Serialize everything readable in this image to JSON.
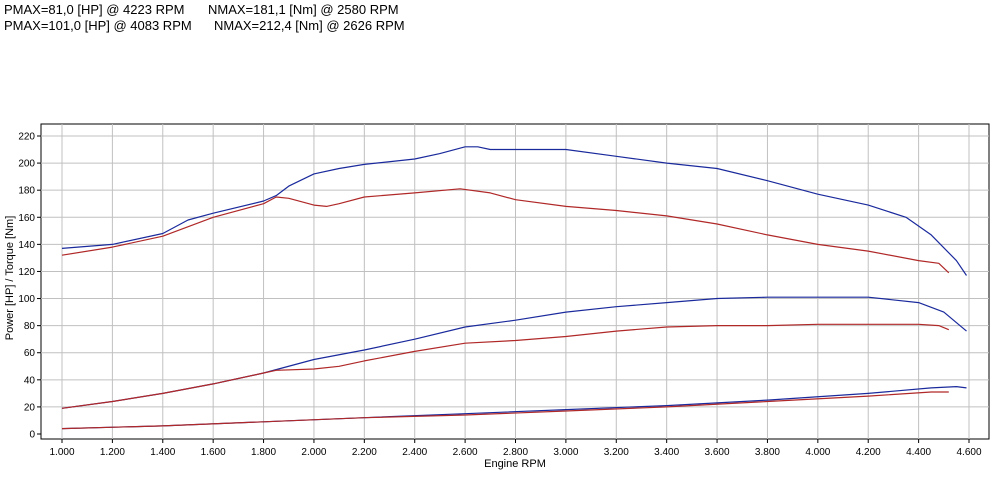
{
  "header": {
    "line1_pmax": "PMAX=81,0 [HP] @ 4223 RPM",
    "line1_nmax": "NMAX=181,1 [Nm] @ 2580 RPM",
    "line2_pmax": "PMAX=101,0 [HP] @ 4083 RPM",
    "line2_nmax": "NMAX=212,4 [Nm] @ 2626 RPM"
  },
  "chart_data": {
    "type": "line",
    "title": "",
    "xlabel": "Engine RPM",
    "ylabel": "Power [HP] / Torque [Nm]",
    "xlim": [
      950,
      4650
    ],
    "ylim": [
      0,
      225
    ],
    "x_ticks": [
      1000,
      1200,
      1400,
      1600,
      1800,
      2000,
      2200,
      2400,
      2600,
      2800,
      3000,
      3200,
      3400,
      3600,
      3800,
      4000,
      4200,
      4400,
      4600
    ],
    "x_tick_labels": [
      "1.000",
      "1.200",
      "1.400",
      "1.600",
      "1.800",
      "2.000",
      "2.200",
      "2.400",
      "2.600",
      "2.800",
      "3.000",
      "3.200",
      "3.400",
      "3.600",
      "3.800",
      "4.000",
      "4.200",
      "4.400",
      "4.600"
    ],
    "y_ticks": [
      0,
      20,
      40,
      60,
      80,
      100,
      120,
      140,
      160,
      180,
      200,
      220
    ],
    "grid": true,
    "legend": "none",
    "colors": {
      "blue": "#1a2a9c",
      "red": "#b02828",
      "grid": "#c0c0c0"
    },
    "series": [
      {
        "color": "blue",
        "role": "torque-tuned",
        "x": [
          1000,
          1200,
          1400,
          1500,
          1600,
          1800,
          1850,
          1900,
          2000,
          2100,
          2200,
          2400,
          2500,
          2600,
          2650,
          2700,
          2800,
          3000,
          3200,
          3400,
          3600,
          3800,
          4000,
          4200,
          4350,
          4450,
          4550,
          4590
        ],
        "y": [
          137,
          140,
          148,
          158,
          163,
          172,
          176,
          183,
          192,
          196,
          199,
          203,
          207,
          212,
          212,
          210,
          210,
          210,
          205,
          200,
          196,
          187,
          177,
          169,
          160,
          147,
          128,
          117
        ]
      },
      {
        "color": "red",
        "role": "torque-stock",
        "x": [
          1000,
          1200,
          1400,
          1600,
          1800,
          1850,
          1900,
          2000,
          2050,
          2100,
          2200,
          2400,
          2580,
          2700,
          2800,
          3000,
          3200,
          3400,
          3600,
          3800,
          4000,
          4200,
          4400,
          4480,
          4520
        ],
        "y": [
          132,
          138,
          146,
          160,
          170,
          175,
          174,
          169,
          168,
          170,
          175,
          178,
          181,
          178,
          173,
          168,
          165,
          161,
          155,
          147,
          140,
          135,
          128,
          126,
          119
        ]
      },
      {
        "color": "blue",
        "role": "power-tuned",
        "x": [
          1000,
          1200,
          1400,
          1600,
          1800,
          2000,
          2200,
          2400,
          2600,
          2800,
          3000,
          3200,
          3400,
          3600,
          3800,
          4000,
          4200,
          4400,
          4500,
          4590
        ],
        "y": [
          19,
          24,
          30,
          37,
          45,
          55,
          62,
          70,
          79,
          84,
          90,
          94,
          97,
          100,
          101,
          101,
          101,
          97,
          90,
          76
        ]
      },
      {
        "color": "red",
        "role": "power-stock",
        "x": [
          1000,
          1200,
          1400,
          1600,
          1800,
          1850,
          2000,
          2100,
          2200,
          2400,
          2600,
          2800,
          3000,
          3200,
          3400,
          3600,
          3800,
          4000,
          4223,
          4400,
          4480,
          4520
        ],
        "y": [
          19,
          24,
          30,
          37,
          45,
          47,
          48,
          50,
          54,
          61,
          67,
          69,
          72,
          76,
          79,
          80,
          80,
          81,
          81,
          81,
          80,
          77
        ]
      },
      {
        "color": "blue",
        "role": "loss-tuned",
        "x": [
          1000,
          1400,
          1800,
          2200,
          2600,
          3000,
          3400,
          3800,
          4200,
          4450,
          4550,
          4590
        ],
        "y": [
          4,
          6,
          9,
          12,
          15,
          18,
          21,
          25,
          30,
          34,
          35,
          34
        ]
      },
      {
        "color": "red",
        "role": "loss-stock",
        "x": [
          1000,
          1400,
          1800,
          2200,
          2600,
          3000,
          3400,
          3800,
          4200,
          4450,
          4520
        ],
        "y": [
          4,
          6,
          9,
          12,
          14,
          17,
          20,
          24,
          28,
          31,
          31
        ]
      }
    ]
  }
}
